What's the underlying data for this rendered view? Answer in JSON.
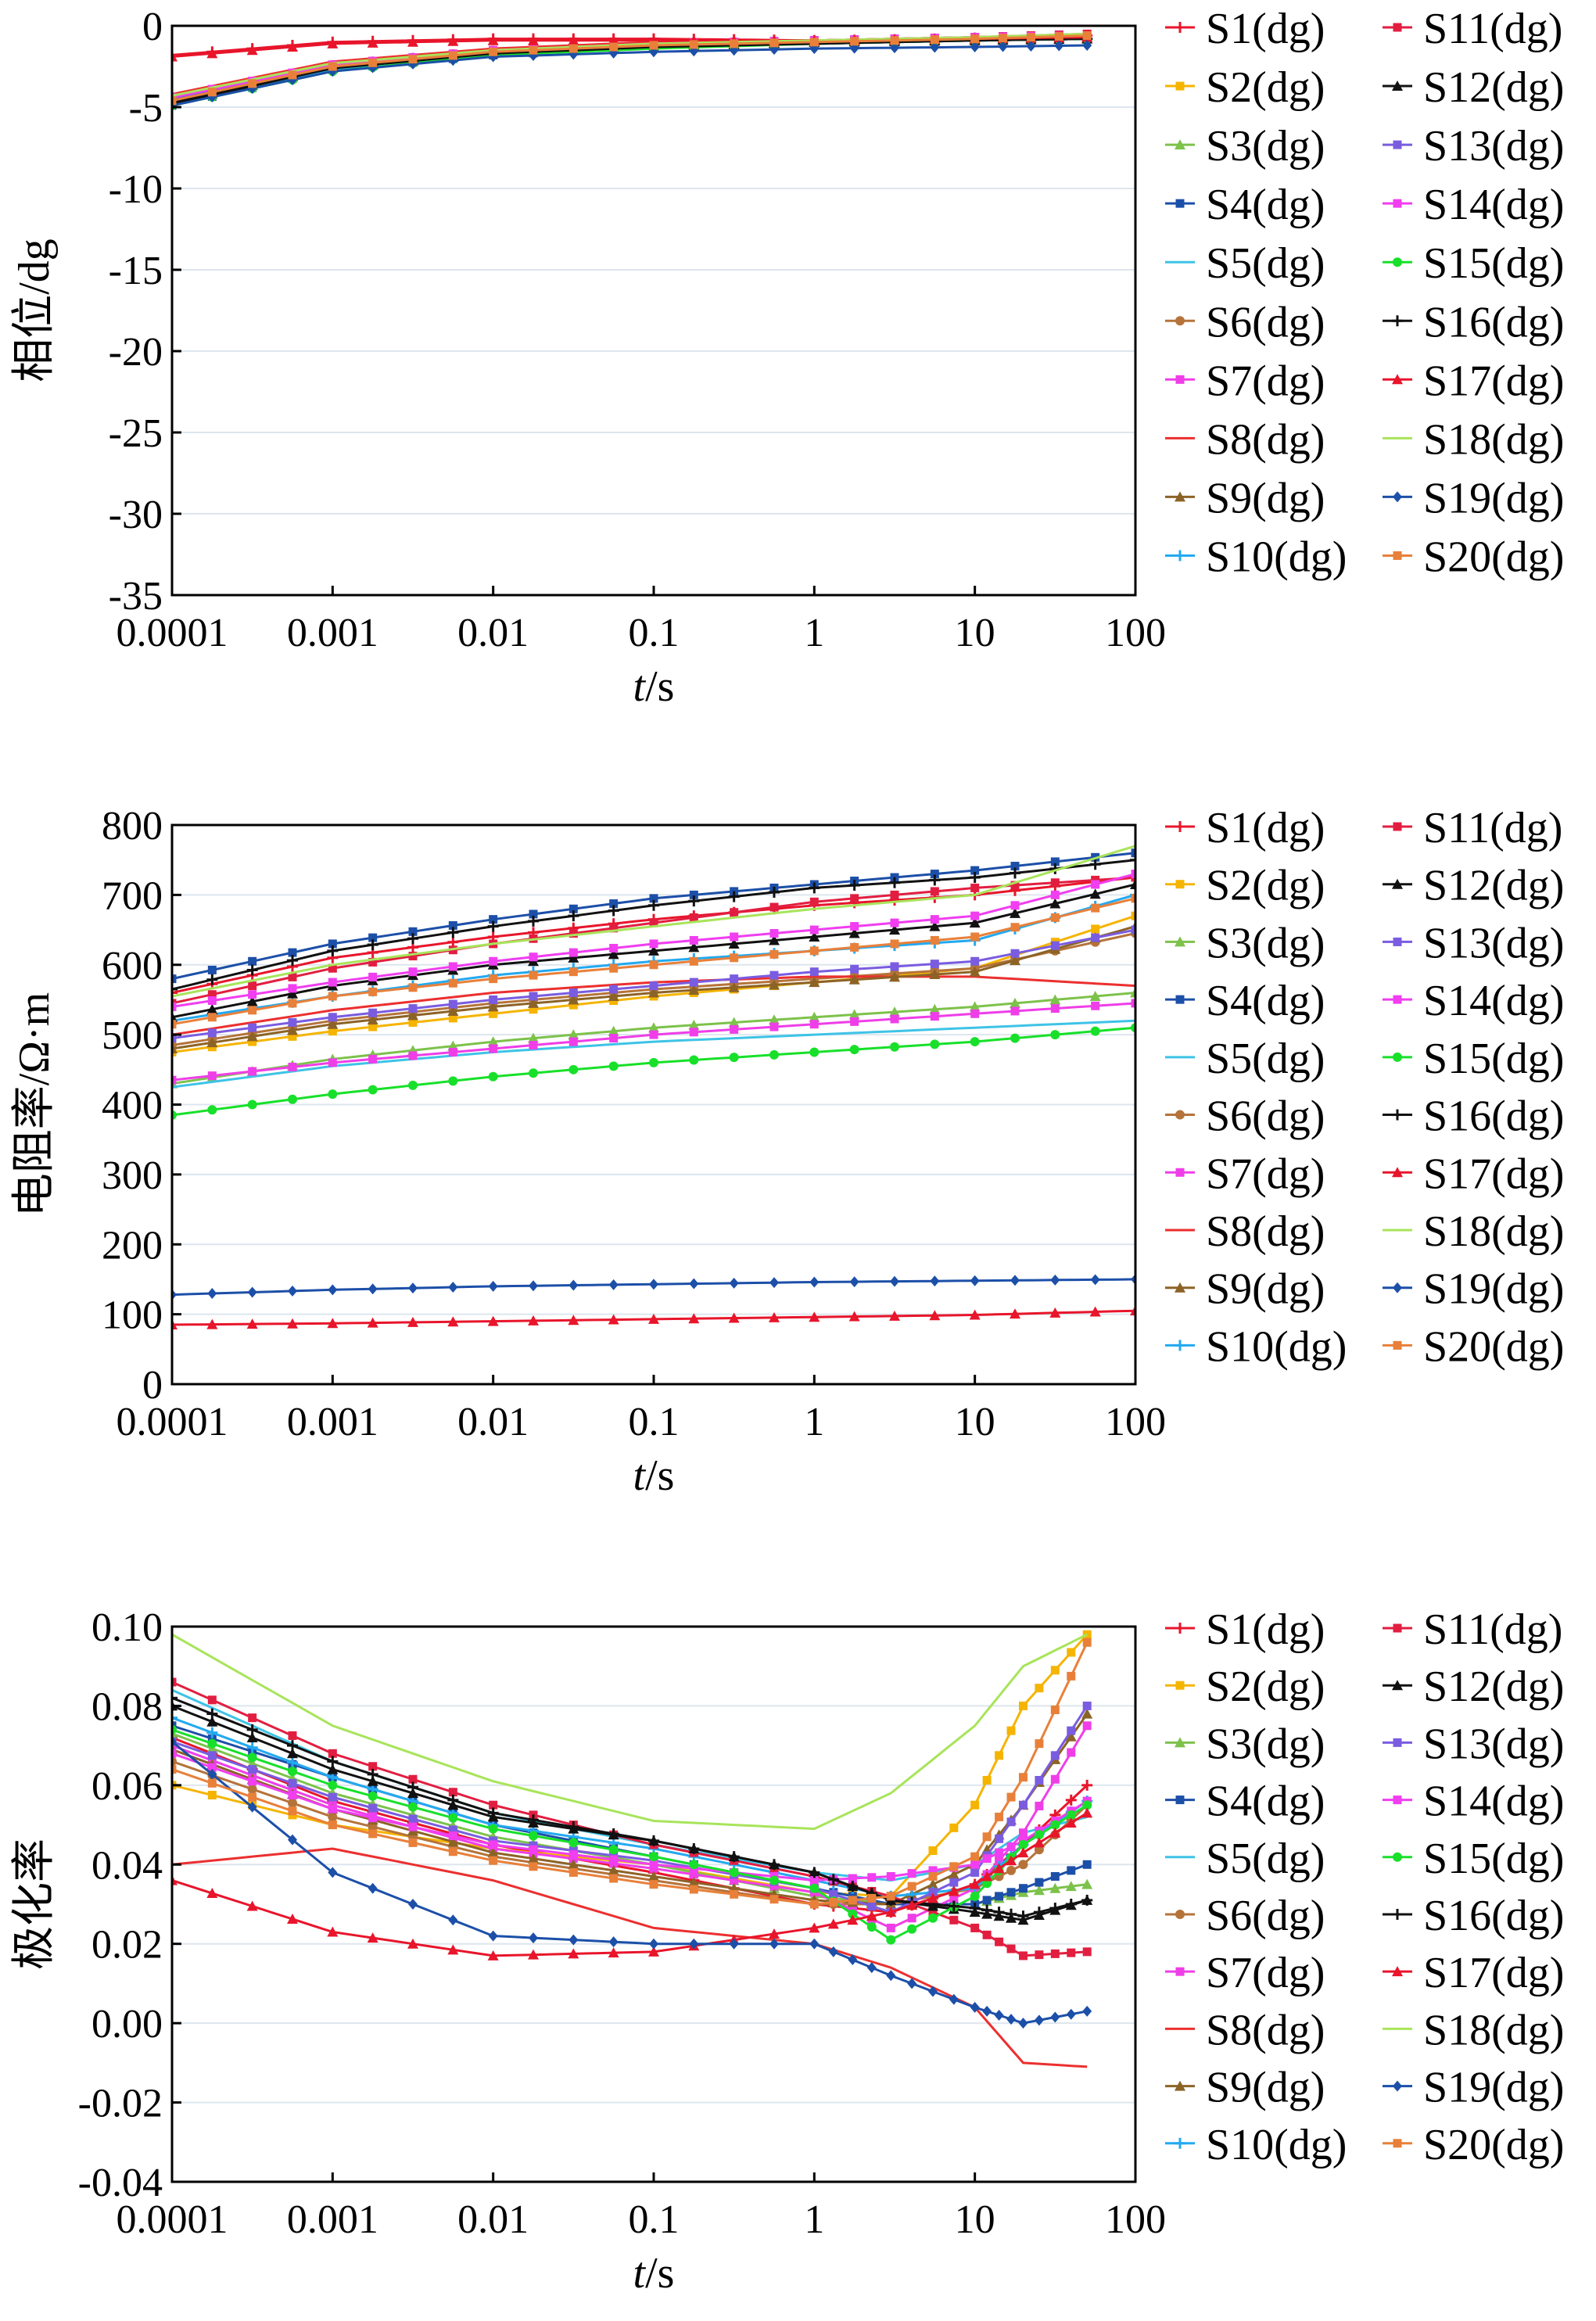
{
  "chart_data": [
    {
      "type": "line",
      "id": "phase",
      "ylabel": "相位/dg",
      "xlabel_italic": "t",
      "xlabel_rest": "/s",
      "xscale": "log",
      "xlim": [
        0.0001,
        100
      ],
      "ylim": [
        -35,
        0
      ],
      "xticks": [
        0.0001,
        0.001,
        0.01,
        0.1,
        1,
        10,
        100
      ],
      "xtick_labels": [
        "0.0001",
        "0.001",
        "0.01",
        "0.1",
        "1",
        "10",
        "100"
      ],
      "yticks": [
        0,
        -5,
        -10,
        -15,
        -20,
        -25,
        -30,
        -35
      ],
      "ytick_labels": [
        "0",
        "-5",
        "-10",
        "-15",
        "-20",
        "-25",
        "-30",
        "-35"
      ],
      "grid": true,
      "legend_position": "right",
      "series_x": [
        0.0001,
        0.001,
        0.01,
        0.1,
        1,
        10,
        50
      ],
      "series": [
        {
          "name": "S1(dg)",
          "values": [
            -1.8,
            -1.0,
            -0.8,
            -0.8,
            -0.9,
            -0.8,
            -0.6
          ]
        },
        {
          "name": "S2(dg)",
          "values": [
            -4.8,
            -2.6,
            -1.6,
            -1.2,
            -1.0,
            -0.8,
            -0.6
          ]
        },
        {
          "name": "S3(dg)",
          "values": [
            -4.6,
            -2.5,
            -1.6,
            -1.2,
            -1.0,
            -0.8,
            -0.7
          ]
        },
        {
          "name": "S4(dg)",
          "values": [
            -4.9,
            -2.7,
            -1.8,
            -1.3,
            -1.1,
            -0.9,
            -0.8
          ]
        },
        {
          "name": "S5(dg)",
          "values": [
            -4.7,
            -2.6,
            -1.7,
            -1.3,
            -1.1,
            -0.9,
            -0.8
          ]
        },
        {
          "name": "S6(dg)",
          "values": [
            -4.5,
            -2.4,
            -1.5,
            -1.1,
            -0.9,
            -0.7,
            -0.6
          ]
        },
        {
          "name": "S7(dg)",
          "values": [
            -4.4,
            -2.4,
            -1.6,
            -1.2,
            -1.0,
            -0.8,
            -0.6
          ]
        },
        {
          "name": "S8(dg)",
          "values": [
            -4.2,
            -2.2,
            -1.4,
            -1.0,
            -0.9,
            -0.7,
            -0.6
          ]
        },
        {
          "name": "S9(dg)",
          "values": [
            -4.5,
            -2.5,
            -1.6,
            -1.2,
            -1.0,
            -0.8,
            -0.7
          ]
        },
        {
          "name": "S10(dg)",
          "values": [
            -4.8,
            -2.7,
            -1.7,
            -1.3,
            -1.1,
            -0.9,
            -0.8
          ]
        },
        {
          "name": "S11(dg)",
          "values": [
            -4.6,
            -2.4,
            -1.5,
            -1.1,
            -0.9,
            -0.7,
            -0.5
          ]
        },
        {
          "name": "S12(dg)",
          "values": [
            -4.7,
            -2.6,
            -1.7,
            -1.3,
            -1.0,
            -0.9,
            -0.8
          ]
        },
        {
          "name": "S13(dg)",
          "values": [
            -4.5,
            -2.5,
            -1.6,
            -1.2,
            -1.0,
            -0.8,
            -0.7
          ]
        },
        {
          "name": "S14(dg)",
          "values": [
            -4.4,
            -2.4,
            -1.5,
            -1.1,
            -0.9,
            -0.7,
            -0.6
          ]
        },
        {
          "name": "S15(dg)",
          "values": [
            -4.9,
            -2.8,
            -1.8,
            -1.4,
            -1.1,
            -0.9,
            -0.8
          ]
        },
        {
          "name": "S16(dg)",
          "values": [
            -4.8,
            -2.6,
            -1.7,
            -1.3,
            -1.1,
            -0.9,
            -0.8
          ]
        },
        {
          "name": "S17(dg)",
          "values": [
            -1.9,
            -1.1,
            -0.9,
            -0.9,
            -0.9,
            -0.8,
            -0.7
          ]
        },
        {
          "name": "S18(dg)",
          "values": [
            -4.3,
            -2.3,
            -1.5,
            -1.1,
            -0.9,
            -0.7,
            -0.5
          ]
        },
        {
          "name": "S19(dg)",
          "values": [
            -4.9,
            -2.8,
            -1.9,
            -1.6,
            -1.4,
            -1.3,
            -1.2
          ]
        },
        {
          "name": "S20(dg)",
          "values": [
            -4.6,
            -2.5,
            -1.6,
            -1.2,
            -1.0,
            -0.8,
            -0.6
          ]
        }
      ]
    },
    {
      "type": "line",
      "id": "resistivity",
      "ylabel": "电阻率/Ω·m",
      "xlabel_italic": "t",
      "xlabel_rest": "/s",
      "xscale": "log",
      "xlim": [
        0.0001,
        100
      ],
      "ylim": [
        0,
        800
      ],
      "xticks": [
        0.0001,
        0.001,
        0.01,
        0.1,
        1,
        10,
        100
      ],
      "xtick_labels": [
        "0.0001",
        "0.001",
        "0.01",
        "0.1",
        "1",
        "10",
        "100"
      ],
      "yticks": [
        0,
        100,
        200,
        300,
        400,
        500,
        600,
        700,
        800
      ],
      "ytick_labels": [
        "0",
        "100",
        "200",
        "300",
        "400",
        "500",
        "600",
        "700",
        "800"
      ],
      "grid": true,
      "legend_position": "right",
      "series_x": [
        0.0001,
        0.001,
        0.01,
        0.1,
        1,
        10,
        100
      ],
      "series": [
        {
          "name": "S1(dg)",
          "values": [
            560,
            610,
            640,
            665,
            685,
            700,
            725
          ]
        },
        {
          "name": "S2(dg)",
          "values": [
            475,
            505,
            530,
            555,
            575,
            595,
            670
          ]
        },
        {
          "name": "S3(dg)",
          "values": [
            430,
            465,
            490,
            510,
            525,
            540,
            560
          ]
        },
        {
          "name": "S4(dg)",
          "values": [
            580,
            630,
            665,
            695,
            715,
            735,
            760
          ]
        },
        {
          "name": "S5(dg)",
          "values": [
            425,
            455,
            475,
            490,
            500,
            510,
            520
          ]
        },
        {
          "name": "S6(dg)",
          "values": [
            485,
            520,
            545,
            565,
            580,
            595,
            645
          ]
        },
        {
          "name": "S7(dg)",
          "values": [
            435,
            460,
            480,
            500,
            515,
            530,
            545
          ]
        },
        {
          "name": "S8(dg)",
          "values": [
            500,
            535,
            560,
            575,
            583,
            583,
            570
          ]
        },
        {
          "name": "S9(dg)",
          "values": [
            480,
            515,
            540,
            560,
            575,
            590,
            655
          ]
        },
        {
          "name": "S10(dg)",
          "values": [
            520,
            555,
            585,
            605,
            620,
            635,
            700
          ]
        },
        {
          "name": "S11(dg)",
          "values": [
            545,
            595,
            630,
            660,
            690,
            710,
            725
          ]
        },
        {
          "name": "S12(dg)",
          "values": [
            525,
            570,
            600,
            620,
            640,
            660,
            715
          ]
        },
        {
          "name": "S13(dg)",
          "values": [
            495,
            525,
            550,
            570,
            590,
            605,
            650
          ]
        },
        {
          "name": "S14(dg)",
          "values": [
            540,
            575,
            605,
            630,
            650,
            670,
            730
          ]
        },
        {
          "name": "S15(dg)",
          "values": [
            385,
            415,
            440,
            460,
            475,
            490,
            510
          ]
        },
        {
          "name": "S16(dg)",
          "values": [
            565,
            620,
            655,
            685,
            710,
            725,
            750
          ]
        },
        {
          "name": "S17(dg)",
          "values": [
            85,
            87,
            90,
            93,
            96,
            99,
            105
          ]
        },
        {
          "name": "S18(dg)",
          "values": [
            555,
            600,
            630,
            655,
            680,
            700,
            770
          ]
        },
        {
          "name": "S19(dg)",
          "values": [
            128,
            135,
            140,
            143,
            146,
            148,
            150
          ]
        },
        {
          "name": "S20(dg)",
          "values": [
            515,
            555,
            580,
            600,
            620,
            640,
            695
          ]
        }
      ]
    },
    {
      "type": "line",
      "id": "chargeability",
      "ylabel": "极化率",
      "xlabel_italic": "t",
      "xlabel_rest": "/s",
      "xscale": "log",
      "xlim": [
        0.0001,
        100
      ],
      "ylim": [
        -0.04,
        0.1
      ],
      "xticks": [
        0.0001,
        0.001,
        0.01,
        0.1,
        1,
        10,
        100
      ],
      "xtick_labels": [
        "0.0001",
        "0.001",
        "0.01",
        "0.1",
        "1",
        "10",
        "100"
      ],
      "yticks": [
        0.1,
        0.08,
        0.06,
        0.04,
        0.02,
        0.0,
        -0.02,
        -0.04
      ],
      "ytick_labels": [
        "0.10",
        "0.08",
        "0.06",
        "0.04",
        "0.02",
        "0.00",
        "-0.02",
        "-0.04"
      ],
      "grid": true,
      "legend_position": "right",
      "series_x": [
        0.0001,
        0.001,
        0.01,
        0.1,
        1,
        3,
        10,
        20,
        50
      ],
      "series": [
        {
          "name": "S1(dg)",
          "values": [
            0.072,
            0.056,
            0.045,
            0.038,
            0.03,
            0.028,
            0.035,
            0.045,
            0.06
          ]
        },
        {
          "name": "S2(dg)",
          "values": [
            0.06,
            0.05,
            0.044,
            0.04,
            0.033,
            0.032,
            0.055,
            0.08,
            0.098
          ]
        },
        {
          "name": "S3(dg)",
          "values": [
            0.073,
            0.058,
            0.047,
            0.04,
            0.032,
            0.03,
            0.03,
            0.033,
            0.035
          ]
        },
        {
          "name": "S4(dg)",
          "values": [
            0.075,
            0.062,
            0.05,
            0.042,
            0.034,
            0.03,
            0.03,
            0.034,
            0.04
          ]
        },
        {
          "name": "S5(dg)",
          "values": [
            0.084,
            0.066,
            0.053,
            0.045,
            0.038,
            0.036,
            0.04,
            0.048,
            0.052
          ]
        },
        {
          "name": "S6(dg)",
          "values": [
            0.066,
            0.052,
            0.042,
            0.036,
            0.03,
            0.03,
            0.034,
            0.04,
            0.055
          ]
        },
        {
          "name": "S7(dg)",
          "values": [
            0.07,
            0.055,
            0.044,
            0.039,
            0.033,
            0.024,
            0.034,
            0.048,
            0.075
          ]
        },
        {
          "name": "S8(dg)",
          "values": [
            0.04,
            0.044,
            0.036,
            0.024,
            0.02,
            0.014,
            0.004,
            -0.01,
            -0.011
          ]
        },
        {
          "name": "S9(dg)",
          "values": [
            0.069,
            0.054,
            0.043,
            0.037,
            0.031,
            0.03,
            0.04,
            0.055,
            0.078
          ]
        },
        {
          "name": "S10(dg)",
          "values": [
            0.077,
            0.062,
            0.05,
            0.044,
            0.036,
            0.032,
            0.034,
            0.045,
            0.056
          ]
        },
        {
          "name": "S11(dg)",
          "values": [
            0.086,
            0.068,
            0.055,
            0.045,
            0.037,
            0.032,
            0.024,
            0.017,
            0.018
          ]
        },
        {
          "name": "S12(dg)",
          "values": [
            0.08,
            0.064,
            0.052,
            0.046,
            0.038,
            0.031,
            0.028,
            0.026,
            0.031
          ]
        },
        {
          "name": "S13(dg)",
          "values": [
            0.071,
            0.057,
            0.046,
            0.041,
            0.034,
            0.028,
            0.038,
            0.055,
            0.08
          ]
        },
        {
          "name": "S14(dg)",
          "values": [
            0.068,
            0.054,
            0.045,
            0.04,
            0.036,
            0.037,
            0.04,
            0.046,
            0.056
          ]
        },
        {
          "name": "S15(dg)",
          "values": [
            0.074,
            0.06,
            0.049,
            0.042,
            0.034,
            0.021,
            0.032,
            0.045,
            0.055
          ]
        },
        {
          "name": "S16(dg)",
          "values": [
            0.082,
            0.066,
            0.053,
            0.046,
            0.038,
            0.031,
            0.029,
            0.027,
            0.031
          ]
        },
        {
          "name": "S17(dg)",
          "values": [
            0.036,
            0.023,
            0.017,
            0.018,
            0.024,
            0.028,
            0.035,
            0.043,
            0.053
          ]
        },
        {
          "name": "S18(dg)",
          "values": [
            0.098,
            0.075,
            0.061,
            0.051,
            0.049,
            0.058,
            0.075,
            0.09,
            0.098
          ]
        },
        {
          "name": "S19(dg)",
          "values": [
            0.071,
            0.038,
            0.022,
            0.02,
            0.02,
            0.012,
            0.004,
            0.0,
            0.003
          ]
        },
        {
          "name": "S20(dg)",
          "values": [
            0.064,
            0.05,
            0.041,
            0.035,
            0.03,
            0.032,
            0.042,
            0.062,
            0.096
          ]
        }
      ]
    }
  ],
  "series_colors": [
    "#e8152b",
    "#f5b400",
    "#7dc24b",
    "#1c4fa8",
    "#3ec3e6",
    "#b5733a",
    "#ef3ee8",
    "#ec2f2f",
    "#8c6326",
    "#23a9f0",
    "#e21e40",
    "#111111",
    "#7a5ce0",
    "#f03ef0",
    "#18e02a",
    "#111111",
    "#e8152b",
    "#a8e45a",
    "#1c4fa8",
    "#e8803a"
  ],
  "series_markers": [
    "plus",
    "square",
    "triangle",
    "square",
    "none",
    "circle",
    "square",
    "none",
    "triangle",
    "plus",
    "square",
    "triangle",
    "square",
    "square",
    "circle",
    "plus",
    "triangle",
    "none",
    "diamond",
    "square"
  ]
}
